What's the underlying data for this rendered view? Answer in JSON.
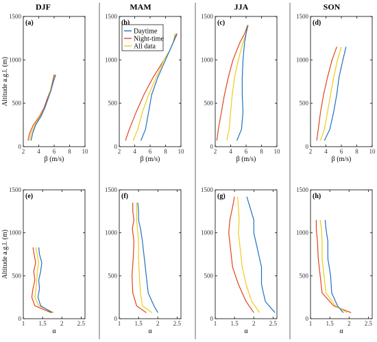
{
  "seasons": [
    "DJF",
    "MAM",
    "JJA",
    "SON"
  ],
  "ylabel": "Altitude a.g.l. (m)",
  "colors": {
    "Daytime": "#1f6fc2",
    "Night-time": "#e0431a",
    "All data": "#f2c81a"
  },
  "legend": [
    "Daytime",
    "Night-time",
    "All data"
  ],
  "chart_data": [
    {
      "type": "line",
      "label": "(a)",
      "season": "DJF",
      "xlabel": "β (m/s)",
      "xlim": [
        2,
        10
      ],
      "ylim": [
        0,
        1500
      ],
      "xticks": [
        2,
        4,
        6,
        8,
        10
      ],
      "yticks": [
        0,
        500,
        1000,
        1500
      ],
      "y": [
        70,
        150,
        250,
        350,
        450,
        550,
        650,
        750,
        830
      ],
      "series": [
        {
          "name": "Daytime",
          "values": [
            3.0,
            3.2,
            3.6,
            4.3,
            4.8,
            5.2,
            5.6,
            5.9,
            6.2
          ]
        },
        {
          "name": "Night-time",
          "values": [
            2.6,
            2.8,
            3.3,
            4.1,
            4.7,
            5.1,
            5.5,
            5.8,
            6.0
          ]
        },
        {
          "name": "All data",
          "values": [
            2.8,
            3.0,
            3.5,
            4.2,
            4.8,
            5.2,
            5.5,
            5.9,
            6.1
          ]
        }
      ]
    },
    {
      "type": "line",
      "label": "(b)",
      "season": "MAM",
      "xlabel": "β (m/s)",
      "xlim": [
        2,
        10
      ],
      "ylim": [
        0,
        1500
      ],
      "xticks": [
        2,
        4,
        6,
        8,
        10
      ],
      "yticks": [
        0,
        500,
        1000,
        1500
      ],
      "y": [
        70,
        200,
        400,
        600,
        800,
        1000,
        1100,
        1200,
        1300
      ],
      "series": [
        {
          "name": "Daytime",
          "values": [
            4.8,
            5.4,
            5.8,
            6.2,
            7.0,
            8.0,
            8.5,
            9.0,
            9.4
          ]
        },
        {
          "name": "Night-time",
          "values": [
            2.8,
            3.3,
            4.2,
            5.2,
            6.4,
            7.8,
            8.5,
            9.0,
            9.5
          ]
        },
        {
          "name": "All data",
          "values": [
            3.8,
            4.4,
            5.0,
            5.8,
            6.8,
            7.8,
            8.5,
            9.0,
            9.2
          ]
        }
      ]
    },
    {
      "type": "line",
      "label": "(c)",
      "season": "JJA",
      "xlabel": "β (m/s)",
      "xlim": [
        2,
        10
      ],
      "ylim": [
        0,
        1500
      ],
      "xticks": [
        2,
        4,
        6,
        8,
        10
      ],
      "yticks": [
        0,
        500,
        1000,
        1500
      ],
      "y": [
        70,
        200,
        400,
        600,
        800,
        1000,
        1200,
        1300,
        1400
      ],
      "series": [
        {
          "name": "Daytime",
          "values": [
            4.8,
            5.4,
            5.6,
            5.5,
            5.5,
            5.6,
            5.8,
            6.0,
            6.2
          ]
        },
        {
          "name": "Night-time",
          "values": [
            2.2,
            2.4,
            2.8,
            3.2,
            3.7,
            4.3,
            5.2,
            5.8,
            6.2
          ]
        },
        {
          "name": "All data",
          "values": [
            3.5,
            3.8,
            4.0,
            4.2,
            4.5,
            5.0,
            5.6,
            6.0,
            6.3
          ]
        }
      ]
    },
    {
      "type": "line",
      "label": "(d)",
      "season": "SON",
      "xlabel": "β (m/s)",
      "xlim": [
        2,
        10
      ],
      "ylim": [
        0,
        1500
      ],
      "xticks": [
        2,
        4,
        6,
        8,
        10
      ],
      "yticks": [
        0,
        500,
        1000,
        1500
      ],
      "y": [
        70,
        200,
        400,
        600,
        800,
        1000,
        1150
      ],
      "series": [
        {
          "name": "Daytime",
          "values": [
            3.8,
            4.5,
            5.0,
            5.4,
            5.7,
            6.2,
            6.6
          ]
        },
        {
          "name": "Night-time",
          "values": [
            2.8,
            3.0,
            3.3,
            3.7,
            4.2,
            4.8,
            5.4
          ]
        },
        {
          "name": "All data",
          "values": [
            3.3,
            3.8,
            4.2,
            4.6,
            5.0,
            5.5,
            6.0
          ]
        }
      ]
    },
    {
      "type": "line",
      "label": "(e)",
      "season": "DJF",
      "xlabel": "α",
      "xlim": [
        1,
        2.6
      ],
      "ylim": [
        0,
        1500
      ],
      "xticks": [
        1,
        1.5,
        2,
        2.5
      ],
      "yticks": [
        0,
        500,
        1000,
        1500
      ],
      "y": [
        70,
        150,
        250,
        350,
        450,
        550,
        650,
        750,
        830
      ],
      "series": [
        {
          "name": "Daytime",
          "values": [
            1.75,
            1.45,
            1.38,
            1.42,
            1.4,
            1.45,
            1.48,
            1.42,
            1.4
          ]
        },
        {
          "name": "Night-time",
          "values": [
            1.72,
            1.3,
            1.22,
            1.25,
            1.3,
            1.27,
            1.32,
            1.28,
            1.25
          ]
        },
        {
          "name": "All data",
          "values": [
            1.8,
            1.4,
            1.3,
            1.33,
            1.35,
            1.36,
            1.4,
            1.36,
            1.32
          ]
        }
      ]
    },
    {
      "type": "line",
      "label": "(f)",
      "season": "MAM",
      "xlabel": "α",
      "xlim": [
        1,
        2.6
      ],
      "ylim": [
        0,
        1500
      ],
      "xticks": [
        1,
        1.5,
        2,
        2.5
      ],
      "yticks": [
        0,
        500,
        1000,
        1500
      ],
      "y": [
        70,
        150,
        300,
        500,
        700,
        900,
        1050,
        1150,
        1250,
        1350
      ],
      "series": [
        {
          "name": "Daytime",
          "values": [
            2.0,
            1.9,
            1.75,
            1.7,
            1.65,
            1.6,
            1.55,
            1.5,
            1.5,
            1.48
          ]
        },
        {
          "name": "Night-time",
          "values": [
            1.7,
            1.45,
            1.35,
            1.33,
            1.36,
            1.38,
            1.34,
            1.38,
            1.35,
            1.35
          ]
        },
        {
          "name": "All data",
          "values": [
            1.85,
            1.6,
            1.55,
            1.52,
            1.5,
            1.5,
            1.47,
            1.45,
            1.45,
            1.45
          ]
        }
      ]
    },
    {
      "type": "line",
      "label": "(g)",
      "season": "JJA",
      "xlabel": "α",
      "xlim": [
        1,
        2.6
      ],
      "ylim": [
        0,
        1500
      ],
      "xticks": [
        1,
        1.5,
        2,
        2.5
      ],
      "yticks": [
        0,
        500,
        1000,
        1500
      ],
      "y": [
        70,
        200,
        400,
        600,
        800,
        1000,
        1150,
        1300,
        1420
      ],
      "series": [
        {
          "name": "Daytime",
          "values": [
            2.55,
            2.3,
            2.2,
            2.2,
            2.1,
            2.0,
            2.0,
            1.9,
            1.82
          ]
        },
        {
          "name": "Night-time",
          "values": [
            2.0,
            1.8,
            1.6,
            1.45,
            1.4,
            1.35,
            1.38,
            1.45,
            1.5
          ]
        },
        {
          "name": "All data",
          "values": [
            2.15,
            1.95,
            1.8,
            1.7,
            1.65,
            1.6,
            1.62,
            1.6,
            1.58
          ]
        }
      ]
    },
    {
      "type": "line",
      "label": "(h)",
      "season": "SON",
      "xlabel": "α",
      "xlim": [
        1,
        2.6
      ],
      "ylim": [
        0,
        1500
      ],
      "xticks": [
        1,
        1.5,
        2,
        2.5
      ],
      "yticks": [
        0,
        500,
        1000,
        1500
      ],
      "y": [
        70,
        150,
        300,
        500,
        700,
        900,
        1050,
        1150
      ],
      "series": [
        {
          "name": "Daytime",
          "values": [
            1.85,
            1.7,
            1.55,
            1.52,
            1.45,
            1.45,
            1.4,
            1.38
          ]
        },
        {
          "name": "Night-time",
          "values": [
            2.05,
            1.6,
            1.3,
            1.25,
            1.2,
            1.18,
            1.15,
            1.15
          ]
        },
        {
          "name": "All data",
          "values": [
            1.95,
            1.65,
            1.4,
            1.35,
            1.3,
            1.3,
            1.28,
            1.25
          ]
        }
      ]
    }
  ]
}
